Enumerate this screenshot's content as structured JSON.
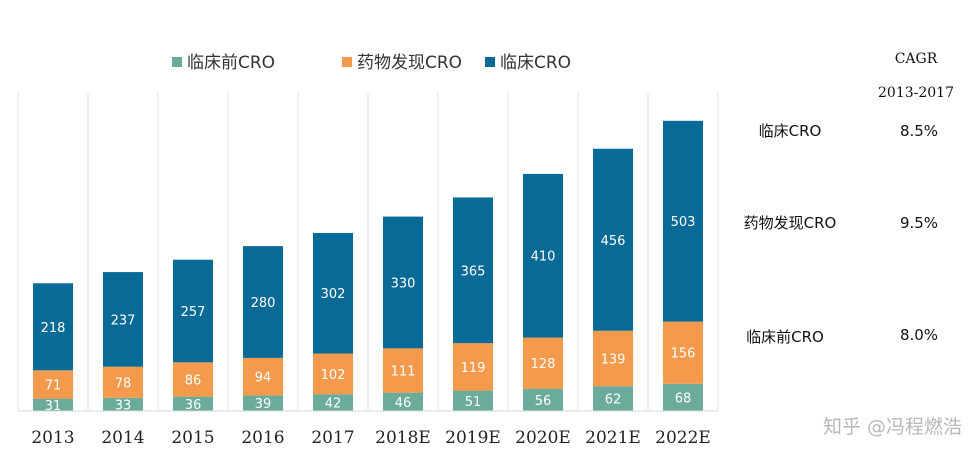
{
  "chart_data": {
    "type": "bar",
    "stacked": true,
    "categories": [
      "2013",
      "2014",
      "2015",
      "2016",
      "2017",
      "2018E",
      "2019E",
      "2020E",
      "2021E",
      "2022E"
    ],
    "series": [
      {
        "name": "临床前CRO",
        "color": "#6aab9c",
        "values": [
          31,
          33,
          36,
          39,
          42,
          46,
          51,
          56,
          62,
          68
        ]
      },
      {
        "name": "药物发现CRO",
        "color": "#f39a4c",
        "values": [
          71,
          78,
          86,
          94,
          102,
          111,
          119,
          128,
          139,
          156
        ]
      },
      {
        "name": "临床CRO",
        "color": "#086a97",
        "values": [
          218,
          237,
          257,
          280,
          302,
          330,
          365,
          410,
          456,
          503
        ]
      }
    ],
    "legend_position": "top",
    "grid": "vertical",
    "ylim": [
      0,
      755
    ]
  },
  "cagr": {
    "header_line1": "CAGR",
    "header_line2": "2013-2017",
    "rows": [
      {
        "label": "临床CRO",
        "value": "8.5%"
      },
      {
        "label": "药物发现CRO",
        "value": "9.5%"
      },
      {
        "label": "临床前CRO",
        "value": "8.0%"
      }
    ]
  },
  "watermark": "知乎 @冯程燃浩"
}
